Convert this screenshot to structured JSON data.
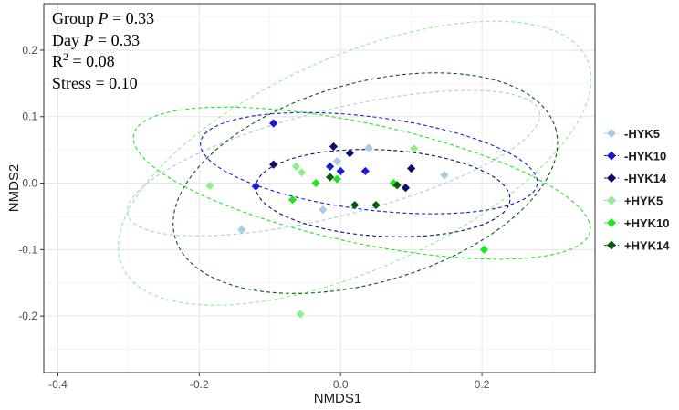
{
  "chart_data": {
    "type": "scatter",
    "xlabel": "NMDS1",
    "ylabel": "NMDS2",
    "xlim": [
      -0.42,
      0.36
    ],
    "ylim": [
      -0.285,
      0.27
    ],
    "x_ticks": [
      -0.4,
      -0.2,
      0.0,
      0.2
    ],
    "x_tick_labels": [
      "-0.4",
      "-0.2",
      "0.0",
      "0.2"
    ],
    "y_ticks": [
      -0.2,
      -0.1,
      0.0,
      0.1,
      0.2
    ],
    "y_tick_labels": [
      "-0.2",
      "-0.1",
      "0.0",
      "0.1",
      "0.2"
    ],
    "grid": true,
    "legend_position": "right",
    "annotations": {
      "group_prefix": "Group ",
      "day_prefix": "Day ",
      "p_symbol": "P",
      "p_value": " = 0.33",
      "r2_base": "R",
      "r2_sup": "2",
      "r2_value": " = 0.08",
      "stress": "Stress = 0.10"
    },
    "series": [
      {
        "name": "-HYK5",
        "color": "#a6cee3",
        "points": [
          [
            -0.14,
            -0.07
          ],
          [
            -0.025,
            -0.04
          ],
          [
            -0.005,
            0.033
          ],
          [
            0.04,
            0.053
          ],
          [
            0.147,
            0.012
          ]
        ],
        "ellipse": {
          "cx": -0.01,
          "cy": 0.03,
          "rx": 0.3,
          "ry": 0.08,
          "angle": 14
        }
      },
      {
        "name": "-HYK10",
        "color": "#1a1ad6",
        "points": [
          [
            -0.095,
            0.09
          ],
          [
            -0.12,
            -0.005
          ],
          [
            -0.015,
            0.025
          ],
          [
            0.0,
            0.018
          ],
          [
            0.035,
            0.018
          ]
        ],
        "ellipse": {
          "cx": 0.04,
          "cy": 0.03,
          "rx": 0.24,
          "ry": 0.07,
          "angle": -7
        }
      },
      {
        "name": "-HYK14",
        "color": "#0d0d6b",
        "points": [
          [
            -0.095,
            0.028
          ],
          [
            -0.01,
            0.055
          ],
          [
            0.013,
            0.045
          ],
          [
            0.1,
            0.022
          ],
          [
            0.092,
            -0.007
          ]
        ],
        "ellipse": {
          "cx": 0.06,
          "cy": -0.015,
          "rx": 0.18,
          "ry": 0.065,
          "angle": -3
        }
      },
      {
        "name": "+HYK5",
        "color": "#90ee90",
        "points": [
          [
            -0.185,
            -0.004
          ],
          [
            -0.063,
            0.025
          ],
          [
            -0.055,
            0.016
          ],
          [
            0.104,
            0.052
          ],
          [
            -0.057,
            -0.197
          ]
        ],
        "ellipse": {
          "cx": 0.02,
          "cy": 0.03,
          "rx": 0.36,
          "ry": 0.16,
          "angle": 24
        }
      },
      {
        "name": "+HYK10",
        "color": "#1ee61e",
        "points": [
          [
            -0.068,
            -0.025
          ],
          [
            -0.035,
            0.0
          ],
          [
            -0.005,
            0.006
          ],
          [
            0.075,
            0.0
          ],
          [
            0.203,
            -0.1
          ]
        ],
        "ellipse": {
          "cx": 0.03,
          "cy": 0.0,
          "rx": 0.33,
          "ry": 0.09,
          "angle": -12
        }
      },
      {
        "name": "+HYK14",
        "color": "#0c5a0c",
        "points": [
          [
            -0.015,
            0.009
          ],
          [
            0.02,
            -0.033
          ],
          [
            0.05,
            -0.033
          ],
          [
            0.08,
            -0.003
          ]
        ],
        "ellipse": {
          "cx": 0.035,
          "cy": 0.0,
          "rx": 0.28,
          "ry": 0.15,
          "angle": 16
        }
      }
    ]
  }
}
